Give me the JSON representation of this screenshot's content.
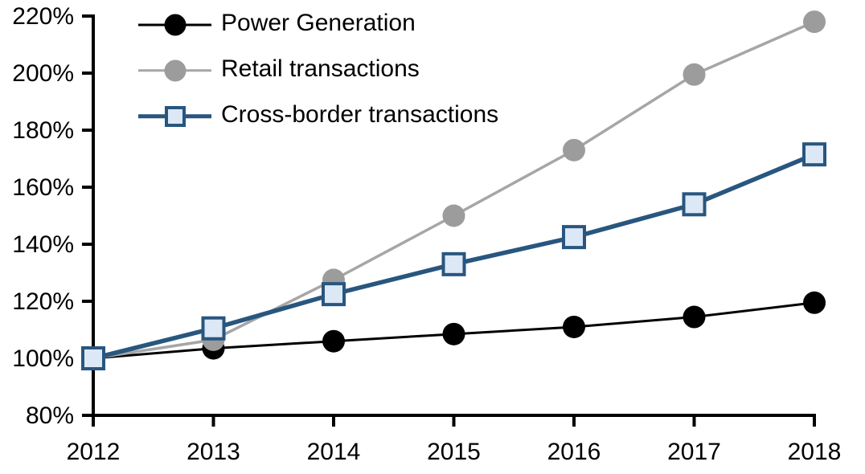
{
  "chart_data": {
    "type": "line",
    "title": "",
    "xlabel": "",
    "ylabel": "",
    "x": [
      "2012",
      "2013",
      "2014",
      "2015",
      "2016",
      "2017",
      "2018"
    ],
    "ylim": [
      80,
      220
    ],
    "yticks": [
      220,
      200,
      180,
      160,
      140,
      120,
      100,
      80
    ],
    "ytick_suffix": "%",
    "grid": false,
    "legend_position": "top-left-inside",
    "axis_color": "#000000",
    "background": "#ffffff",
    "series": [
      {
        "name": "Power Generation",
        "values": [
          100,
          103.5,
          106,
          108.5,
          111,
          114.5,
          119.5
        ],
        "color": "#000000",
        "line_width": 3,
        "marker": "circle",
        "marker_fill": "#000000"
      },
      {
        "name": "Retail transactions",
        "values": [
          100,
          106.5,
          127.5,
          150,
          173,
          199.5,
          218
        ],
        "color": "#A6A6A6",
        "line_width": 3.5,
        "marker": "circle",
        "marker_fill": "#9C9C9C"
      },
      {
        "name": "Cross-border transactions",
        "values": [
          100,
          110.5,
          122.5,
          133,
          142.5,
          154,
          171.5
        ],
        "color": "#28567F",
        "line_width": 5.5,
        "marker": "square",
        "marker_fill": "#DCE8F5",
        "marker_border": "#28567F"
      }
    ]
  }
}
